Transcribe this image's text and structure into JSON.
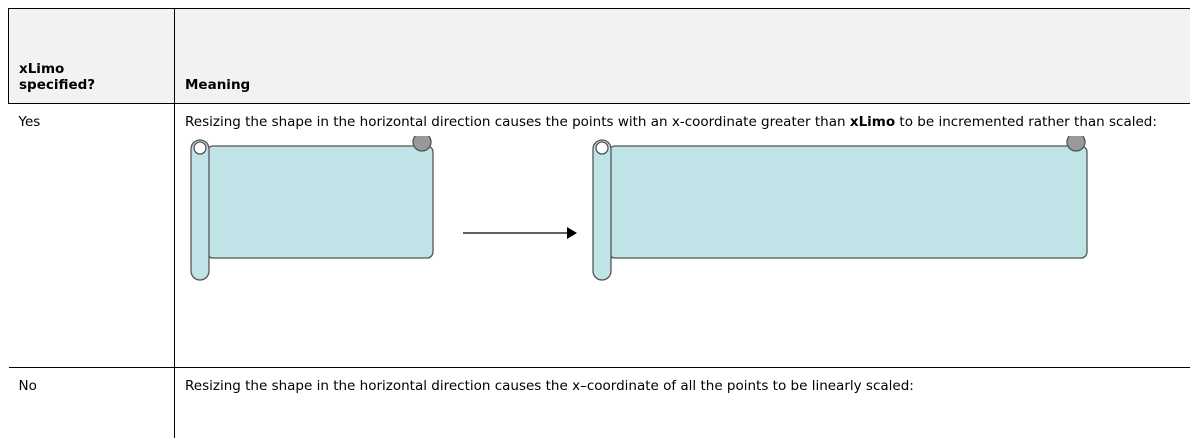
{
  "table": {
    "header": [
      "xLimo specified?",
      "Meaning"
    ],
    "rows": [
      [
        "Yes",
        {
          "before": "Resizing the shape in the horizontal direction causes the points with an x-coordinate greater than ",
          "bold": "xLimo",
          "after": " to be incremented rather than scaled:"
        }
      ],
      [
        "No",
        "Resizing the shape in the horizontal direction causes the x–coordinate of all the points to be linearly scaled:"
      ]
    ]
  }
}
